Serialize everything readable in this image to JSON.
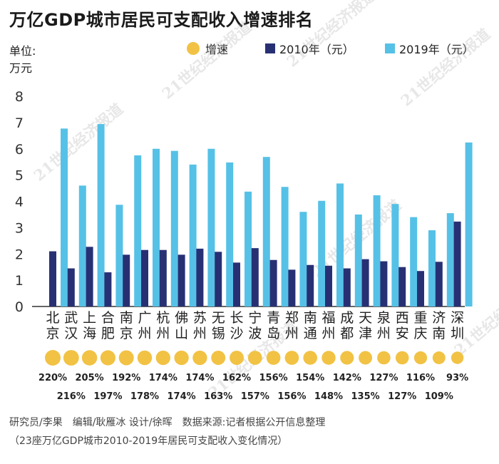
{
  "title": "万亿GDP城市居民可支配收入增速排名",
  "unit_label_line1": "单位:",
  "unit_label_line2": "万元",
  "legend": {
    "growth": "增速",
    "y2010": "2010年（元）",
    "y2019": "2019年（元）"
  },
  "colors": {
    "y2010": "#283074",
    "y2019": "#56c1e6",
    "growth": "#f1c244",
    "axis": "#333333",
    "watermark": "#b7b7b7"
  },
  "watermark_text": "21世纪经济报道",
  "footer": {
    "credits": "研究员/李果　编辑/耿雁冰 设计/徐晖　数据来源:记者根据公开信息整理",
    "note": "（23座万亿GDP城市2010-2019年居民可支配收入变化情况）"
  },
  "chart_data": {
    "type": "bar",
    "ylim": [
      0,
      8
    ],
    "yticks": [
      0,
      1,
      2,
      3,
      4,
      5,
      6,
      7,
      8
    ],
    "categories": [
      [
        "北",
        "京"
      ],
      [
        "武",
        "汉"
      ],
      [
        "上",
        "海"
      ],
      [
        "合",
        "肥"
      ],
      [
        "南",
        "京"
      ],
      [
        "广",
        "州"
      ],
      [
        "杭",
        "州"
      ],
      [
        "佛",
        "山"
      ],
      [
        "苏",
        "州"
      ],
      [
        "无",
        "锡"
      ],
      [
        "长",
        "沙"
      ],
      [
        "宁",
        "波"
      ],
      [
        "青",
        "岛"
      ],
      [
        "郑",
        "州"
      ],
      [
        "南",
        "通"
      ],
      [
        "福",
        "州"
      ],
      [
        "成",
        "都"
      ],
      [
        "天",
        "津"
      ],
      [
        "泉",
        "州"
      ],
      [
        "西",
        "安"
      ],
      [
        "重",
        "庆"
      ],
      [
        "济",
        "南"
      ],
      [
        "深",
        "圳"
      ]
    ],
    "series": [
      {
        "name": "2010年（元）",
        "key": "y2010",
        "values": [
          2.1,
          1.45,
          2.27,
          1.3,
          1.97,
          2.15,
          2.15,
          1.97,
          2.2,
          2.08,
          1.67,
          2.22,
          1.77,
          1.4,
          1.58,
          1.55,
          1.45,
          1.8,
          1.72,
          1.5,
          1.35,
          1.7,
          3.23
        ]
      },
      {
        "name": "2019年（元）",
        "key": "y2019",
        "values": [
          6.77,
          4.6,
          6.94,
          3.87,
          5.75,
          6.0,
          5.92,
          5.4,
          6.0,
          5.48,
          4.37,
          5.69,
          4.55,
          3.6,
          4.02,
          4.68,
          3.5,
          4.23,
          3.9,
          3.4,
          2.9,
          3.55,
          6.24
        ]
      }
    ],
    "growth": {
      "name": "增速",
      "percents": [
        220,
        216,
        205,
        197,
        192,
        178,
        174,
        174,
        174,
        163,
        162,
        157,
        156,
        156,
        154,
        148,
        142,
        135,
        127,
        127,
        116,
        109,
        93
      ],
      "labels": [
        "220%",
        "216%",
        "205%",
        "197%",
        "192%",
        "178%",
        "174%",
        "174%",
        "174%",
        "163%",
        "162%",
        "157%",
        "156%",
        "156%",
        "154%",
        "148%",
        "142%",
        "135%",
        "127%",
        "127%",
        "116%",
        "109%",
        "93%"
      ]
    }
  }
}
